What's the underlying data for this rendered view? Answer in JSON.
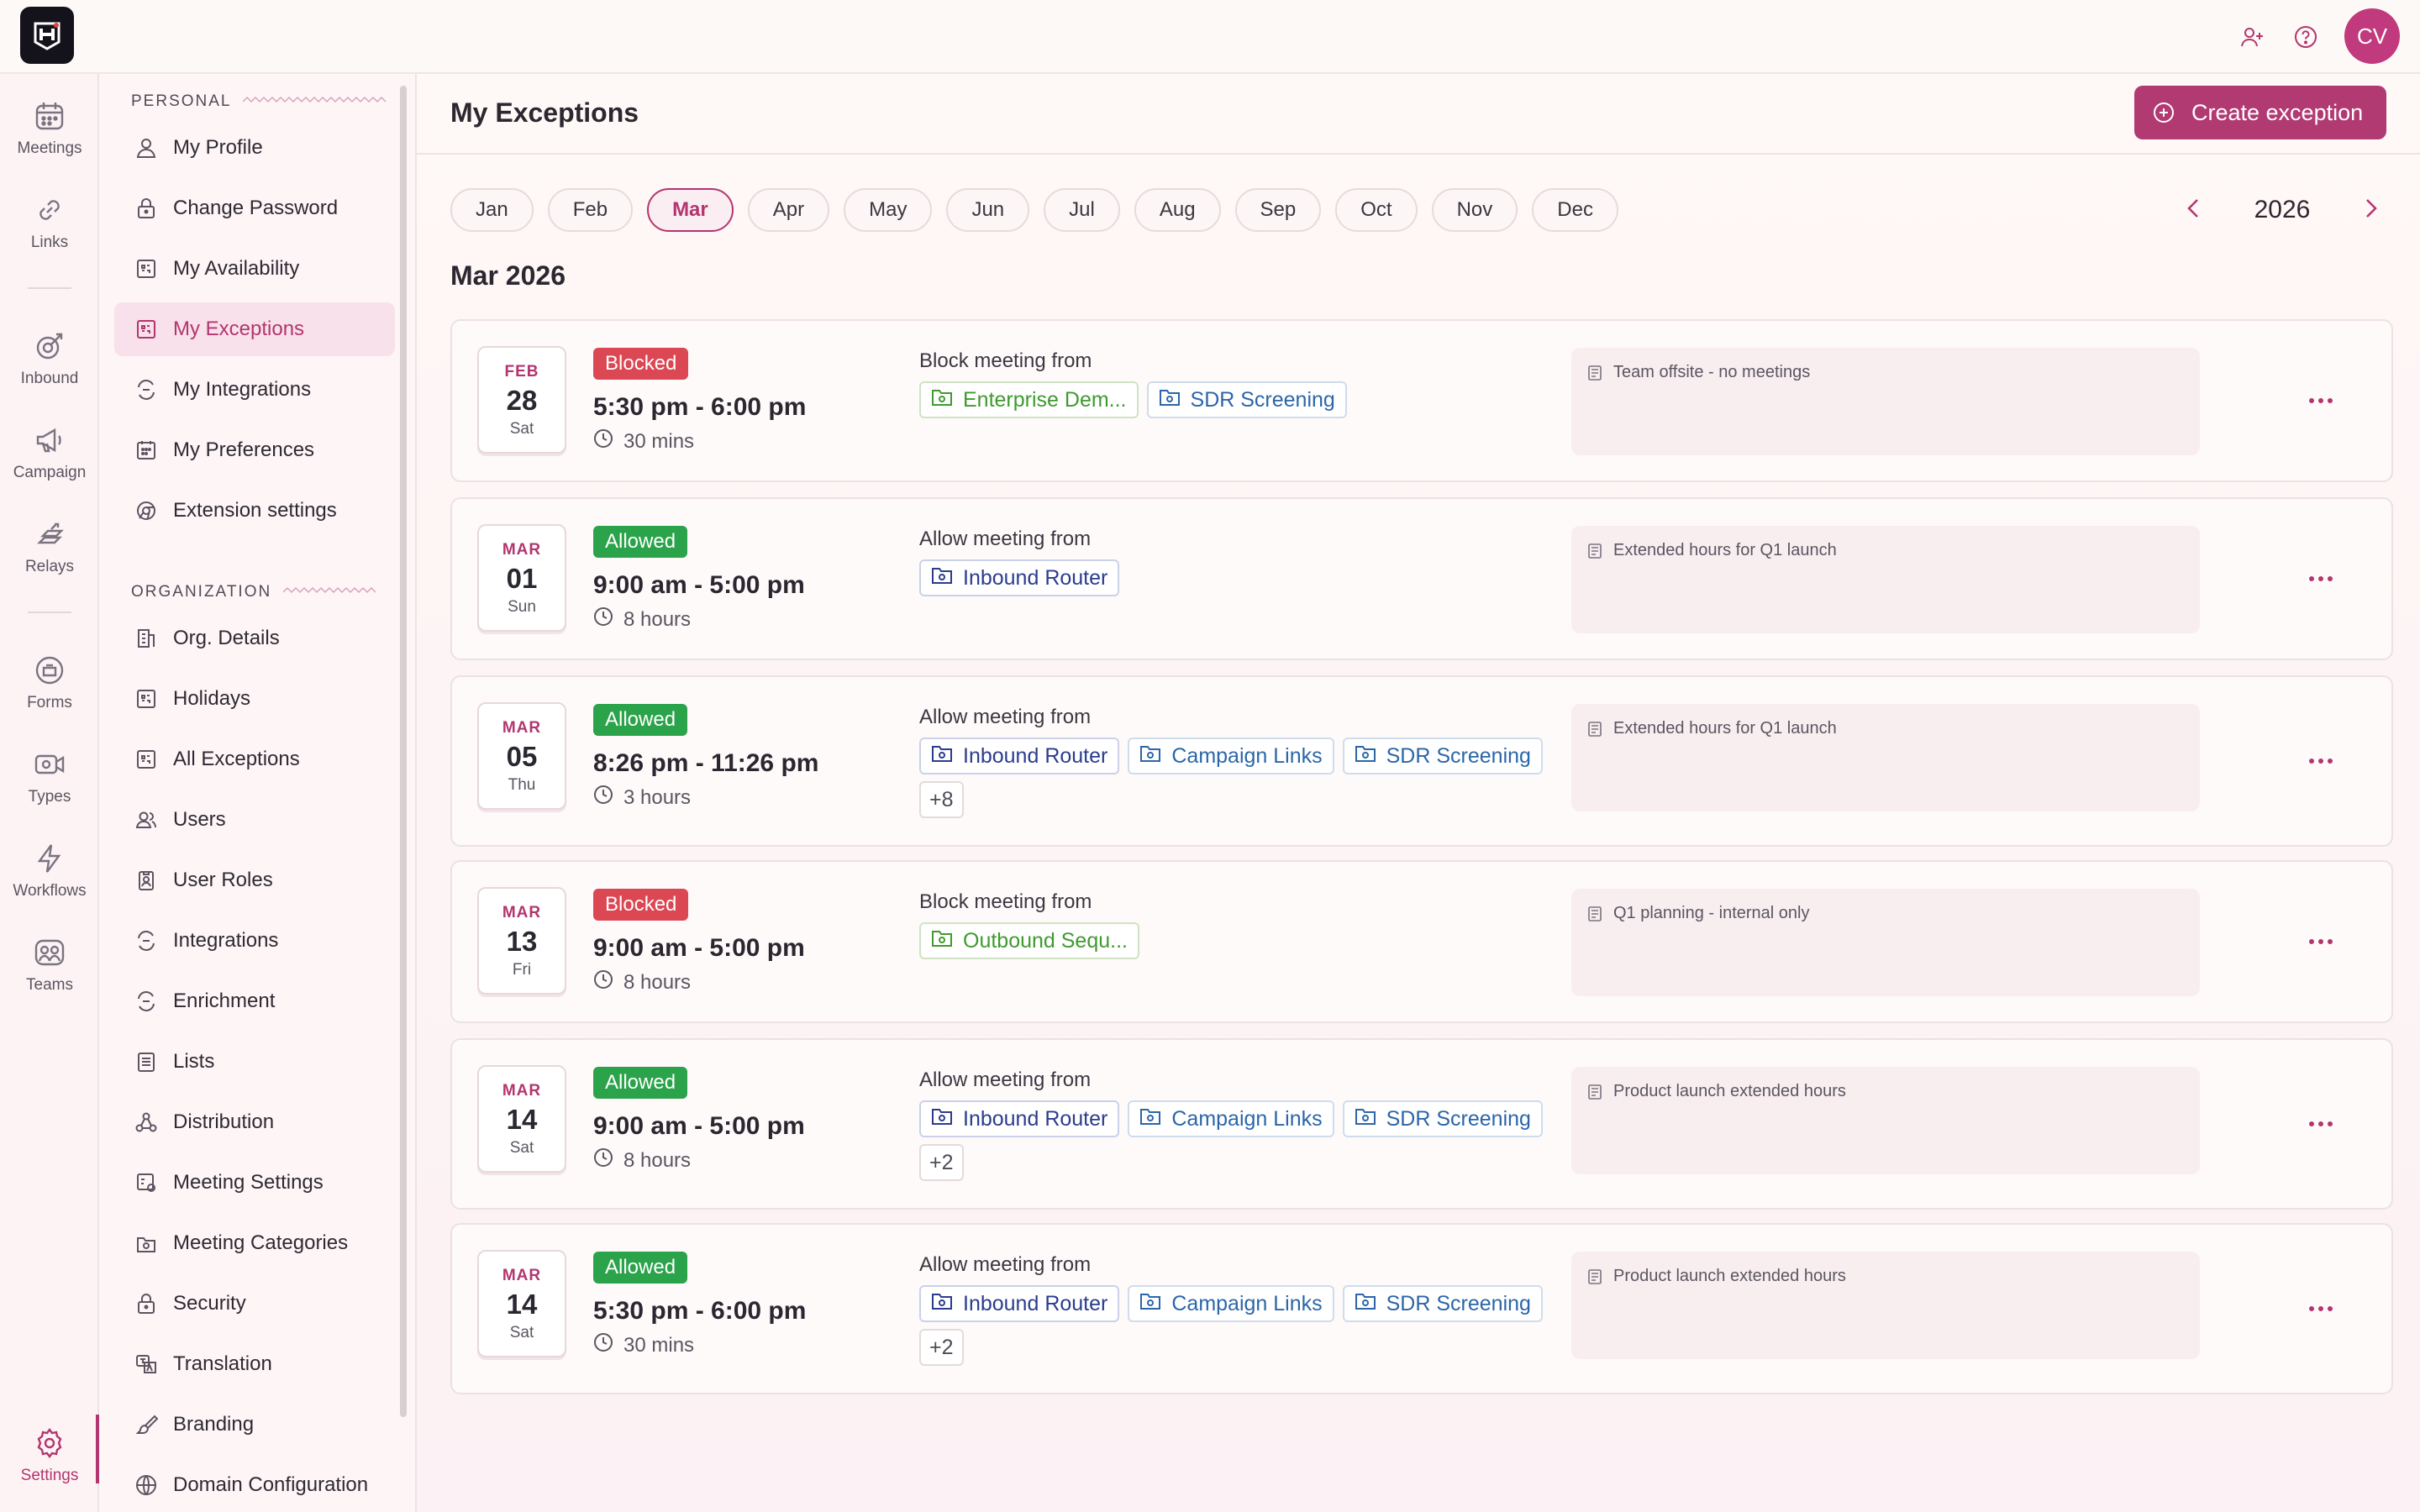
{
  "topbar": {
    "avatar_initials": "CV",
    "icons": [
      "add-user-icon",
      "help-icon"
    ]
  },
  "rail": {
    "items": [
      {
        "label": "Meetings",
        "icon": "calendar-icon"
      },
      {
        "label": "Links",
        "icon": "link-icon"
      },
      {
        "label": "Inbound",
        "icon": "inbound-icon"
      },
      {
        "label": "Campaign",
        "icon": "megaphone-icon"
      },
      {
        "label": "Relays",
        "icon": "relay-icon"
      },
      {
        "label": "Forms",
        "icon": "form-icon"
      },
      {
        "label": "Types",
        "icon": "video-icon"
      },
      {
        "label": "Workflows",
        "icon": "lightning-icon"
      },
      {
        "label": "Teams",
        "icon": "team-icon"
      },
      {
        "label": "Settings",
        "icon": "gear-icon"
      }
    ],
    "active": "Settings"
  },
  "sidebar": {
    "personal_title": "PERSONAL",
    "personal": [
      "My Profile",
      "Change Password",
      "My Availability",
      "My Exceptions",
      "My Integrations",
      "My Preferences",
      "Extension settings"
    ],
    "organization_title": "ORGANIZATION",
    "organization": [
      "Org. Details",
      "Holidays",
      "All Exceptions",
      "Users",
      "User Roles",
      "Integrations",
      "Enrichment",
      "Lists",
      "Distribution",
      "Meeting Settings",
      "Meeting Categories",
      "Security",
      "Translation",
      "Branding",
      "Domain Configuration"
    ],
    "active": "My Exceptions"
  },
  "header": {
    "title": "My Exceptions",
    "create_label": "Create exception"
  },
  "months": [
    "Jan",
    "Feb",
    "Mar",
    "Apr",
    "May",
    "Jun",
    "Jul",
    "Aug",
    "Sep",
    "Oct",
    "Nov",
    "Dec"
  ],
  "active_month": "Mar",
  "year": "2026",
  "section_heading": "Mar 2026",
  "exceptions": [
    {
      "month": "FEB",
      "day": "28",
      "weekday": "Sat",
      "status": "Blocked",
      "time": "5:30 pm - 6:00 pm",
      "duration": "30 mins",
      "rule_label": "Block meeting from",
      "chips": [
        {
          "label": "Enterprise Dem...",
          "color": "green"
        },
        {
          "label": "SDR Screening",
          "color": "blue"
        }
      ],
      "more": "",
      "note": "Team offsite - no meetings"
    },
    {
      "month": "MAR",
      "day": "01",
      "weekday": "Sun",
      "status": "Allowed",
      "time": "9:00 am - 5:00 pm",
      "duration": "8 hours",
      "rule_label": "Allow meeting from",
      "chips": [
        {
          "label": "Inbound Router",
          "color": "navy"
        }
      ],
      "more": "",
      "note": "Extended hours for Q1 launch"
    },
    {
      "month": "MAR",
      "day": "05",
      "weekday": "Thu",
      "status": "Allowed",
      "time": "8:26 pm - 11:26 pm",
      "duration": "3 hours",
      "rule_label": "Allow meeting from",
      "chips": [
        {
          "label": "Inbound Router",
          "color": "navy"
        },
        {
          "label": "Campaign Links",
          "color": "blue"
        },
        {
          "label": "SDR Screening",
          "color": "blue"
        }
      ],
      "more": "+8",
      "note": "Extended hours for Q1 launch"
    },
    {
      "month": "MAR",
      "day": "13",
      "weekday": "Fri",
      "status": "Blocked",
      "time": "9:00 am - 5:00 pm",
      "duration": "8 hours",
      "rule_label": "Block meeting from",
      "chips": [
        {
          "label": "Outbound Sequ...",
          "color": "green"
        }
      ],
      "more": "",
      "note": "Q1 planning - internal only"
    },
    {
      "month": "MAR",
      "day": "14",
      "weekday": "Sat",
      "status": "Allowed",
      "time": "9:00 am - 5:00 pm",
      "duration": "8 hours",
      "rule_label": "Allow meeting from",
      "chips": [
        {
          "label": "Inbound Router",
          "color": "navy"
        },
        {
          "label": "Campaign Links",
          "color": "blue"
        },
        {
          "label": "SDR Screening",
          "color": "blue"
        }
      ],
      "more": "+2",
      "note": "Product launch extended hours"
    },
    {
      "month": "MAR",
      "day": "14",
      "weekday": "Sat",
      "status": "Allowed",
      "time": "5:30 pm - 6:00 pm",
      "duration": "30 mins",
      "rule_label": "Allow meeting from",
      "chips": [
        {
          "label": "Inbound Router",
          "color": "navy"
        },
        {
          "label": "Campaign Links",
          "color": "blue"
        },
        {
          "label": "SDR Screening",
          "color": "blue"
        }
      ],
      "more": "+2",
      "note": "Product launch extended hours"
    }
  ],
  "colors": {
    "brand": "#b23a73",
    "blocked": "#db4753",
    "allowed": "#2ba34a"
  }
}
